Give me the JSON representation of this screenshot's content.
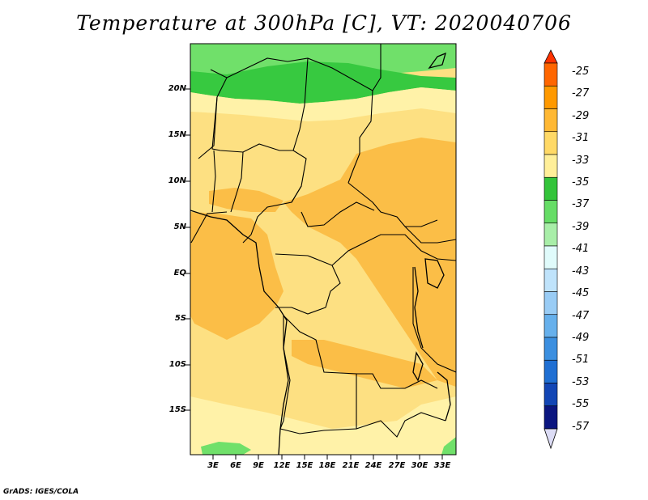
{
  "title": "Temperature at 300hPa [C], VT: 2020040706",
  "footer": "GrADS: IGES/COLA",
  "lat_ticks": [
    "20N",
    "15N",
    "10N",
    "5N",
    "EQ",
    "5S",
    "10S",
    "15S"
  ],
  "lon_ticks": [
    "3E",
    "6E",
    "9E",
    "12E",
    "15E",
    "18E",
    "21E",
    "24E",
    "27E",
    "30E",
    "33E"
  ],
  "colorbar": {
    "labels": [
      "-25",
      "-27",
      "-29",
      "-31",
      "-33",
      "-35",
      "-37",
      "-39",
      "-41",
      "-43",
      "-45",
      "-47",
      "-49",
      "-51",
      "-53",
      "-55",
      "-57"
    ],
    "colors": [
      "#ff3300",
      "#ff6600",
      "#ff9900",
      "#ffb833",
      "#ffd966",
      "#ffef99",
      "#33c43a",
      "#66dd66",
      "#a8eea8",
      "#e0fbfb",
      "#bfe3fb",
      "#99ccf5",
      "#66b0ec",
      "#3b8fe0",
      "#1f6fd3",
      "#1246b5",
      "#0b1680",
      "#dcdcf5"
    ]
  },
  "map_colors": {
    "light_yellow": "#fff2a8",
    "yellow": "#fde082",
    "orange": "#fbbe47",
    "green": "#37c940",
    "light_green": "#70e06a",
    "border": "#000000"
  }
}
